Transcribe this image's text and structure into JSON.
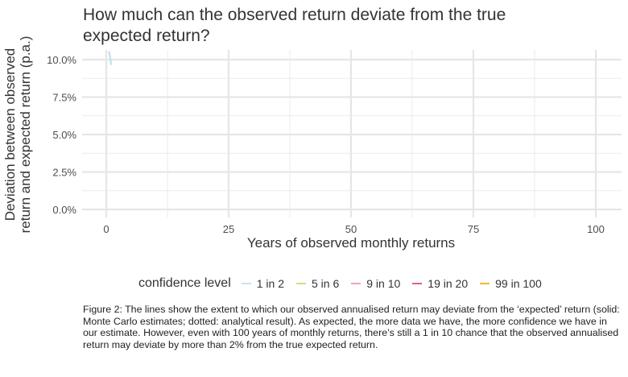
{
  "chart_data": {
    "type": "line",
    "title": "How much can the observed return deviate from the true expected return?",
    "xlabel": "Years of observed monthly returns",
    "ylabel": "Deviation between observed return and expected return (p.a.)",
    "xlim": [
      0,
      100
    ],
    "ylim": [
      0,
      0.1
    ],
    "x_ticks": [
      0,
      25,
      50,
      75,
      100
    ],
    "x_tick_labels": [
      "0",
      "25",
      "50",
      "75",
      "100"
    ],
    "y_ticks": [
      0,
      0.025,
      0.05,
      0.075,
      0.1
    ],
    "y_tick_labels": [
      "0.0%",
      "2.5%",
      "5.0%",
      "7.5%",
      "10.0%"
    ],
    "grid": true,
    "legend_title": "confidence level",
    "legend_position": "bottom",
    "series": [
      {
        "name": "1 in 2",
        "color": "#c6e2f0",
        "x": [
          0.6,
          0.75,
          0.9,
          1.0
        ],
        "y": [
          0.105,
          0.102,
          0.099,
          0.097
        ]
      },
      {
        "name": "5 in 6",
        "color": "#c9df8a",
        "x": [],
        "y": []
      },
      {
        "name": "9 in 10",
        "color": "#f4a6b4",
        "x": [],
        "y": []
      },
      {
        "name": "19 in 20",
        "color": "#e0618a",
        "x": [],
        "y": []
      },
      {
        "name": "99 in 100",
        "color": "#f5b731",
        "x": [],
        "y": []
      }
    ]
  },
  "caption": "Figure 2: The lines show the extent to which our observed annualised return may deviate from the ‘expected’ return (solid: Monte Carlo estimates; dotted: analytical result). As expected, the more data we have, the more confidence we have in our estimate. However, even with 100 years of monthly returns, there’s still a 1 in 10 chance that the observed annualised return may deviate by more than 2% from the true expected return."
}
